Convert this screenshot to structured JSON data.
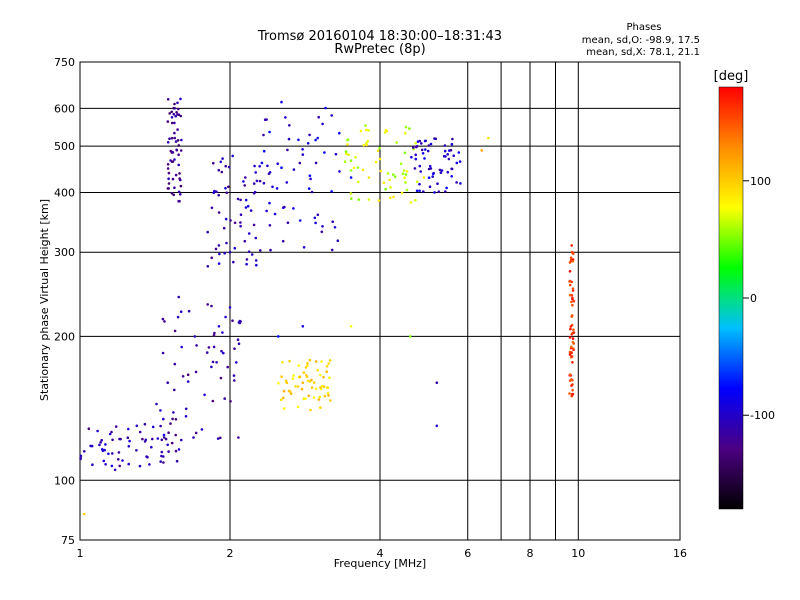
{
  "header": {
    "title_line1": "Tromsø 20160104 18:30:00–18:31:43",
    "title_line2": "RwPretec (8p)",
    "stats_title": "Phases",
    "stats_o": "mean, sd,O: -98.9, 17.5",
    "stats_x": "mean, sd,X:  78.1, 21.1"
  },
  "chart_data": {
    "type": "scatter",
    "title": "Tromsø 20160104 18:30:00–18:31:43",
    "subtitle": "RwPretec (8p)",
    "xlabel": "Frequency [MHz]",
    "ylabel": "Stationary phase Virtual Height [km]",
    "x_scale": "log",
    "y_scale": "log",
    "xlim": [
      1,
      16
    ],
    "ylim": [
      75,
      750
    ],
    "x_ticks": [
      1,
      2,
      4,
      6,
      8,
      10,
      16
    ],
    "x_minor_ticks": [
      7,
      9
    ],
    "y_ticks": [
      75,
      100,
      200,
      300,
      400,
      500,
      600,
      750
    ],
    "grid": true,
    "colorbar": {
      "label": "[deg]",
      "range": [
        -180,
        180
      ],
      "ticks": [
        100,
        0,
        -100
      ],
      "colors": [
        "#000000",
        "#4b0082",
        "#0000ff",
        "#00bfff",
        "#00ff00",
        "#ffff00",
        "#ff8c00",
        "#ff0000"
      ]
    },
    "clusters": [
      {
        "name": "",
        "x_range": [
          1.0,
          1.6
        ],
        "y_range": [
          105,
          130
        ],
        "phase": -110
      },
      {
        "name": "",
        "x_range": [
          1.4,
          2.1
        ],
        "y_range": [
          120,
          250
        ],
        "phase": -115
      },
      {
        "name": "",
        "x_range": [
          1.5,
          1.6
        ],
        "y_range": [
          380,
          640
        ],
        "phase": -120
      },
      {
        "name": "",
        "x_range": [
          1.8,
          2.3
        ],
        "y_range": [
          280,
          480
        ],
        "phase": -110
      },
      {
        "name": "",
        "x_range": [
          2.3,
          3.4
        ],
        "y_range": [
          300,
          620
        ],
        "phase": -95
      },
      {
        "name": "",
        "x_range": [
          2.5,
          3.2
        ],
        "y_range": [
          140,
          180
        ],
        "phase": 95
      },
      {
        "name": "",
        "x_range": [
          3.4,
          4.8
        ],
        "y_range": [
          380,
          560
        ],
        "phase": 70
      },
      {
        "name": "",
        "x_range": [
          4.6,
          5.8
        ],
        "y_range": [
          400,
          520
        ],
        "phase": -100
      },
      {
        "name": "",
        "x_range": [
          9.6,
          9.8
        ],
        "y_range": [
          150,
          310
        ],
        "phase": 160
      }
    ],
    "points": [
      [
        1.02,
        115,
        -110
      ],
      [
        1.05,
        118,
        -105
      ],
      [
        1.1,
        120,
        -115
      ],
      [
        1.15,
        125,
        -100
      ],
      [
        1.2,
        122,
        -110
      ],
      [
        1.25,
        128,
        -95
      ],
      [
        1.3,
        130,
        -100
      ],
      [
        1.35,
        131,
        -110
      ],
      [
        1.45,
        140,
        -105
      ],
      [
        1.5,
        160,
        -110
      ],
      [
        1.55,
        175,
        -115
      ],
      [
        1.6,
        190,
        -100
      ],
      [
        1.7,
        200,
        -105
      ],
      [
        1.8,
        185,
        -110
      ],
      [
        1.9,
        210,
        -95
      ],
      [
        2.0,
        230,
        -100
      ],
      [
        2.1,
        215,
        -110
      ],
      [
        2.5,
        200,
        -75
      ],
      [
        2.8,
        210,
        -90
      ],
      [
        1.55,
        600,
        -115
      ],
      [
        1.55,
        520,
        -120
      ],
      [
        1.9,
        310,
        -110
      ],
      [
        2.0,
        300,
        -105
      ],
      [
        2.1,
        340,
        -110
      ],
      [
        2.4,
        380,
        -90
      ],
      [
        2.6,
        420,
        -95
      ],
      [
        2.8,
        480,
        -100
      ],
      [
        3.0,
        520,
        -90
      ],
      [
        3.2,
        580,
        -100
      ],
      [
        3.5,
        430,
        -80
      ],
      [
        3.8,
        430,
        90
      ],
      [
        4.0,
        470,
        80
      ],
      [
        4.2,
        410,
        70
      ],
      [
        4.5,
        420,
        60
      ],
      [
        4.9,
        430,
        90
      ],
      [
        5.3,
        440,
        -100
      ],
      [
        5.5,
        470,
        -110
      ],
      [
        5.7,
        420,
        -105
      ],
      [
        2.6,
        160,
        100
      ],
      [
        2.8,
        160,
        110
      ],
      [
        3.0,
        170,
        90
      ],
      [
        3.1,
        150,
        100
      ],
      [
        6.4,
        490,
        120
      ],
      [
        6.6,
        520,
        90
      ],
      [
        9.7,
        310,
        170
      ],
      [
        9.7,
        260,
        160
      ],
      [
        9.7,
        220,
        150
      ],
      [
        9.7,
        185,
        165
      ],
      [
        9.7,
        150,
        160
      ],
      [
        1.02,
        85,
        100
      ],
      [
        3.5,
        210,
        80
      ],
      [
        4.6,
        200,
        50
      ],
      [
        5.2,
        160,
        -110
      ],
      [
        5.2,
        130,
        -100
      ]
    ]
  }
}
